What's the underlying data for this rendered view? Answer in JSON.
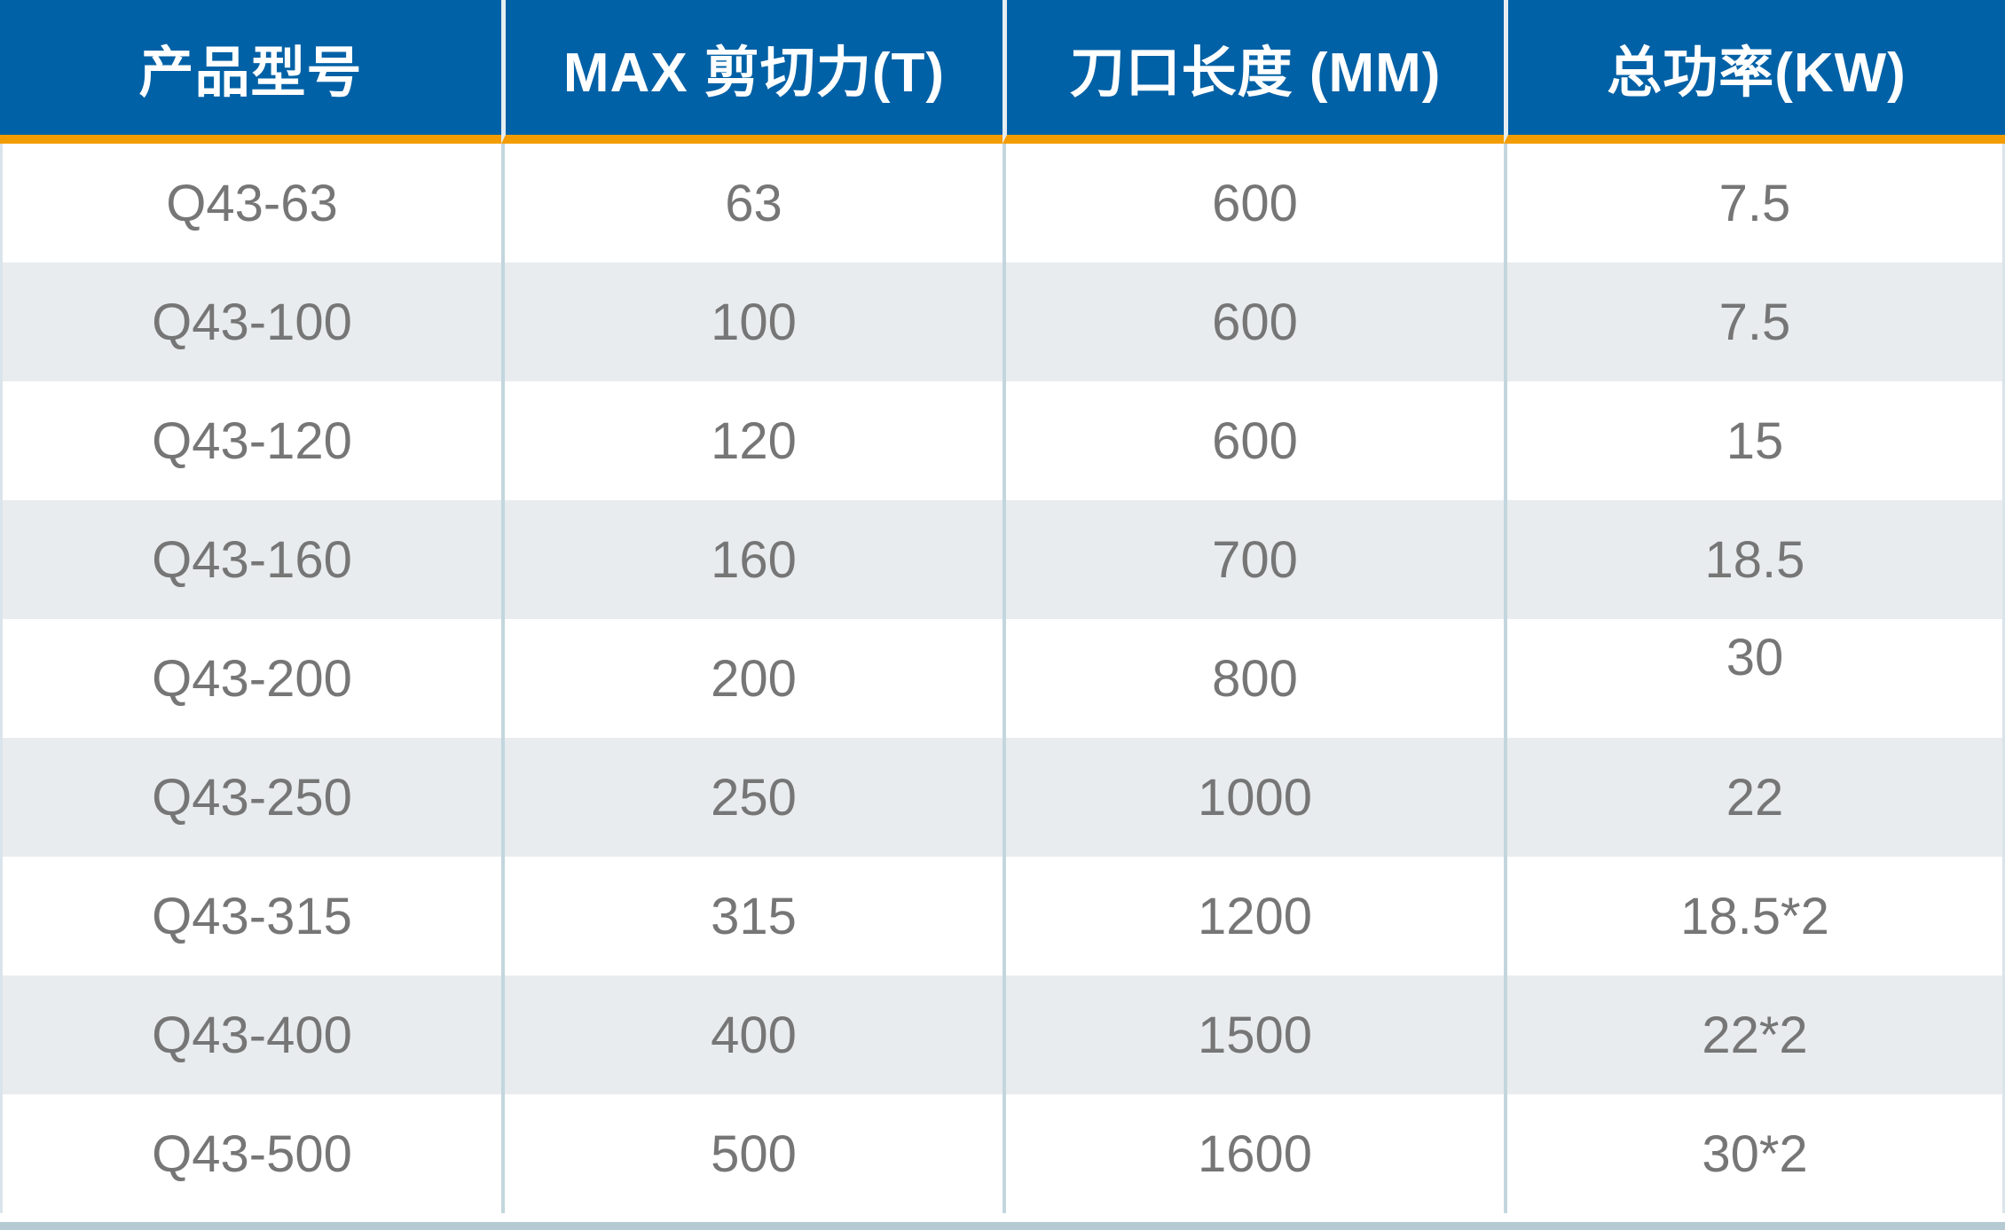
{
  "table": {
    "columns": [
      {
        "label": "产品型号"
      },
      {
        "label": "MAX 剪切力(T)"
      },
      {
        "label": "刀口长度 (MM)"
      },
      {
        "label": "总功率(KW)"
      }
    ],
    "rows": [
      {
        "model": "Q43-63",
        "force": "63",
        "length": "600",
        "power": "7.5"
      },
      {
        "model": "Q43-100",
        "force": "100",
        "length": "600",
        "power": "7.5"
      },
      {
        "model": "Q43-120",
        "force": "120",
        "length": "600",
        "power": "15"
      },
      {
        "model": "Q43-160",
        "force": "160",
        "length": "700",
        "power": "18.5"
      },
      {
        "model": "Q43-200",
        "force": "200",
        "length": "800",
        "power": "30"
      },
      {
        "model": "Q43-250",
        "force": "250",
        "length": "1000",
        "power": "22"
      },
      {
        "model": "Q43-315",
        "force": "315",
        "length": "1200",
        "power": "18.5*2"
      },
      {
        "model": "Q43-400",
        "force": "400",
        "length": "1500",
        "power": "22*2"
      },
      {
        "model": "Q43-500",
        "force": "500",
        "length": "1600",
        "power": "30*2"
      }
    ]
  },
  "colors": {
    "header_bg": "#0061a6",
    "accent_orange": "#f39c00",
    "row_alt": "#e8ecef",
    "row_white": "#ffffff",
    "divider": "#c3d6de",
    "divider_light": "#e7eef2",
    "outer_edge": "#dae4ea",
    "bottom_band": "#b6cad4",
    "text_gray": "#767676",
    "header_text": "#ffffff"
  }
}
